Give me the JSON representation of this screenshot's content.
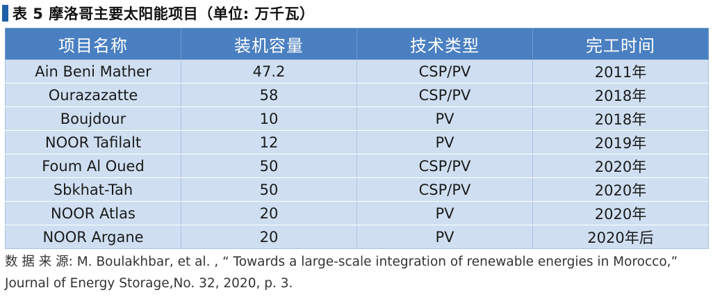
{
  "title": "表 5  摩洛哥主要太阳能项目（单位: 万千瓦）",
  "columns": [
    "项目名称",
    "装机容量",
    "技术类型",
    "完工时间"
  ],
  "rows": [
    [
      "Ain Beni Mather",
      "47.2",
      "CSP/PV",
      "2011年"
    ],
    [
      "Ourazazatte",
      "58",
      "CSP/PV",
      "2018年"
    ],
    [
      "Boujdour",
      "10",
      "PV",
      "2018年"
    ],
    [
      "NOOR Tafilalt",
      "12",
      "PV",
      "2019年"
    ],
    [
      "Foum Al Oued",
      "50",
      "CSP/PV",
      "2020年"
    ],
    [
      "Sbkhat-Tah",
      "50",
      "CSP/PV",
      "2020年"
    ],
    [
      "NOOR Atlas",
      "20",
      "PV",
      "2020年"
    ],
    [
      "NOOR Argane",
      "20",
      "PV",
      "2020年后"
    ]
  ],
  "source": "数 据 来 源: M. Boulakhbar, et al. , “ Towards a large-scale integration of renewable energies in Morocco,” Journal of Energy Storage,No. 32, 2020, p. 3.",
  "colors": {
    "header_bg": "#4a7fc1",
    "row_bg": "#cfdff1",
    "title_bar": "#1f5fa8"
  }
}
